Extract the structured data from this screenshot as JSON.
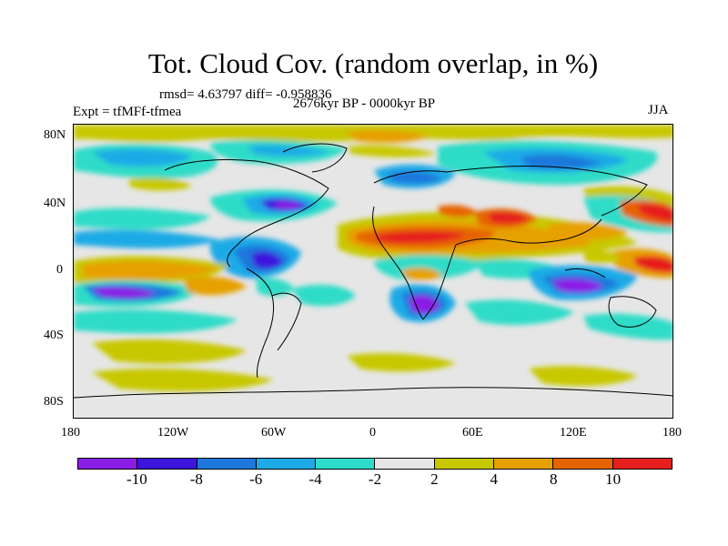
{
  "title": "Tot. Cloud Cov. (random overlap, in %)",
  "stats": "rmsd= 4.63797 diff= -0.958836",
  "period": "2676kyr BP - 0000kyr BP",
  "experiment": "Expt = tfMFf-tfmea",
  "season": "JJA",
  "lat_ticks": [
    "80N",
    "40N",
    "0",
    "40S",
    "80S"
  ],
  "lon_ticks": [
    "180",
    "120W",
    "60W",
    "0",
    "60E",
    "120E",
    "180"
  ],
  "colorbar": {
    "colors": [
      "#8a1ee6",
      "#3c14dc",
      "#1e78dc",
      "#1eaae6",
      "#2ddcc8",
      "#e6e6e6",
      "#c8c800",
      "#e6a000",
      "#e66400",
      "#e61e1e"
    ],
    "labels": [
      "-10",
      "-8",
      "-6",
      "-4",
      "-2",
      "2",
      "4",
      "8",
      "10"
    ]
  }
}
